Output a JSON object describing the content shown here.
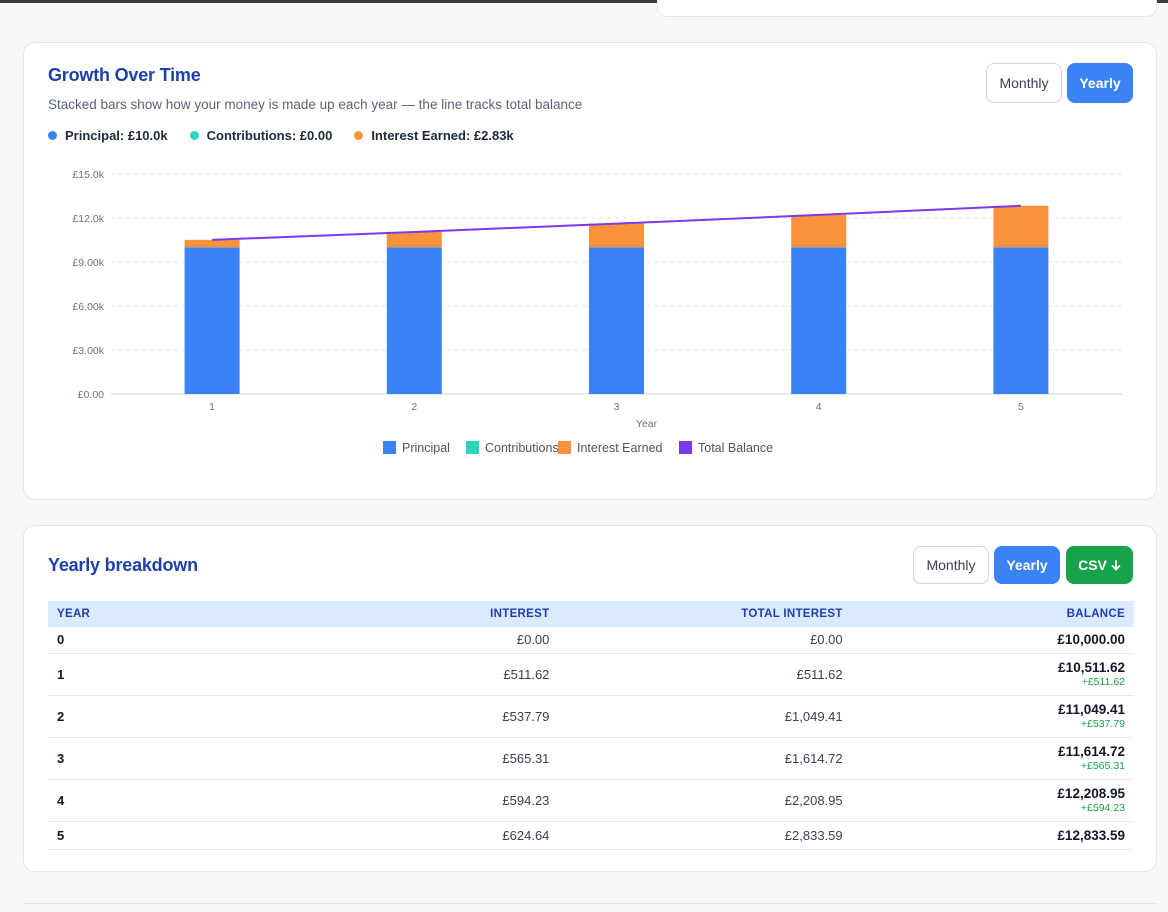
{
  "growth": {
    "title": "Growth Over Time",
    "subtitle": "Stacked bars show how your money is made up each year — the line tracks total balance",
    "toggle": {
      "monthly": "Monthly",
      "yearly": "Yearly",
      "active": "Yearly"
    },
    "summary": [
      {
        "label": "Principal: £10.0k",
        "color": "#3b82f6"
      },
      {
        "label": "Contributions: £0.00",
        "color": "#2dd4bf"
      },
      {
        "label": "Interest Earned: £2.83k",
        "color": "#fb923c"
      }
    ]
  },
  "chart_data": {
    "type": "bar",
    "stacked": true,
    "categories": [
      "1",
      "2",
      "3",
      "4",
      "5"
    ],
    "xlabel": "Year",
    "ylabel": "",
    "ylim": [
      0,
      15000
    ],
    "y_ticks": [
      "£0.00",
      "£3.00k",
      "£6.00k",
      "£9.00k",
      "£12.0k",
      "£15.0k"
    ],
    "y_tick_values": [
      0,
      3000,
      6000,
      9000,
      12000,
      15000
    ],
    "grid": true,
    "legend_position": "bottom",
    "series": [
      {
        "name": "Principal",
        "type": "bar",
        "color": "#3b82f6",
        "values": [
          10000,
          10000,
          10000,
          10000,
          10000
        ]
      },
      {
        "name": "Contributions",
        "type": "bar",
        "color": "#2dd4bf",
        "values": [
          0,
          0,
          0,
          0,
          0
        ]
      },
      {
        "name": "Interest Earned",
        "type": "bar",
        "color": "#fb923c",
        "values": [
          511.62,
          1049.41,
          1614.72,
          2208.95,
          2833.59
        ]
      },
      {
        "name": "Total Balance",
        "type": "line",
        "color": "#7c3aed",
        "values": [
          10511.62,
          11049.41,
          11614.72,
          12208.95,
          12833.59
        ]
      }
    ]
  },
  "breakdown": {
    "title": "Yearly breakdown",
    "toggle": {
      "monthly": "Monthly",
      "yearly": "Yearly",
      "active": "Yearly"
    },
    "csv_label": "CSV",
    "columns": [
      "YEAR",
      "INTEREST",
      "TOTAL INTEREST",
      "BALANCE"
    ],
    "rows": [
      {
        "year": "0",
        "interest": "£0.00",
        "total_interest": "£0.00",
        "balance": "£10,000.00",
        "delta": ""
      },
      {
        "year": "1",
        "interest": "£511.62",
        "total_interest": "£511.62",
        "balance": "£10,511.62",
        "delta": "+£511.62"
      },
      {
        "year": "2",
        "interest": "£537.79",
        "total_interest": "£1,049.41",
        "balance": "£11,049.41",
        "delta": "+£537.79"
      },
      {
        "year": "3",
        "interest": "£565.31",
        "total_interest": "£1,614.72",
        "balance": "£11,614.72",
        "delta": "+£565.31"
      },
      {
        "year": "4",
        "interest": "£594.23",
        "total_interest": "£2,208.95",
        "balance": "£12,208.95",
        "delta": "+£594.23"
      },
      {
        "year": "5",
        "interest": "£624.64",
        "total_interest": "£2,833.59",
        "balance": "£12,833.59",
        "delta": ""
      }
    ]
  }
}
